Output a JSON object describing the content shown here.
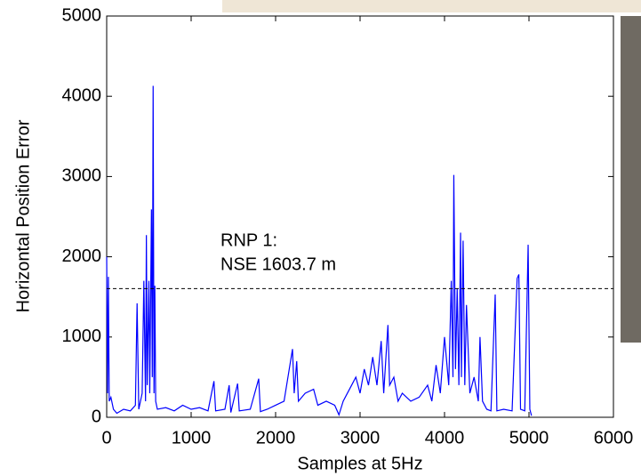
{
  "chart_data": {
    "type": "line",
    "y_label": "Horizontal Position Error",
    "x_label": "Samples at 5Hz",
    "annotations": [
      "RNP 1:",
      "NSE 1603.7 m"
    ],
    "reference_line": 1603.7,
    "xlim": [
      0,
      6000
    ],
    "xticks": [
      0,
      1000,
      2000,
      3000,
      4000,
      5000,
      6000
    ],
    "ylim": [
      0,
      5000
    ],
    "yticks": [
      0,
      1000,
      2000,
      3000,
      4000,
      5000
    ],
    "color": "#0000ff",
    "x": [
      0,
      10,
      20,
      30,
      50,
      80,
      120,
      200,
      280,
      340,
      360,
      380,
      420,
      440,
      460,
      470,
      480,
      500,
      510,
      530,
      540,
      550,
      560,
      570,
      580,
      600,
      700,
      800,
      900,
      1000,
      1100,
      1200,
      1270,
      1290,
      1400,
      1450,
      1470,
      1550,
      1570,
      1700,
      1800,
      1820,
      1900,
      2000,
      2100,
      2200,
      2220,
      2250,
      2270,
      2350,
      2450,
      2500,
      2600,
      2700,
      2750,
      2800,
      2850,
      2900,
      2950,
      3000,
      3050,
      3100,
      3150,
      3200,
      3250,
      3280,
      3330,
      3350,
      3400,
      3450,
      3500,
      3600,
      3700,
      3800,
      3850,
      3900,
      3950,
      4000,
      4050,
      4080,
      4100,
      4110,
      4130,
      4150,
      4170,
      4190,
      4200,
      4220,
      4240,
      4260,
      4300,
      4350,
      4400,
      4420,
      4450,
      4500,
      4550,
      4600,
      4620,
      4700,
      4800,
      4860,
      4880,
      4900,
      4950,
      4990,
      5010,
      5030
    ],
    "values": [
      2000,
      300,
      1750,
      200,
      250,
      100,
      50,
      100,
      80,
      150,
      1420,
      100,
      300,
      1700,
      200,
      2270,
      400,
      1700,
      300,
      2590,
      500,
      4130,
      300,
      1640,
      200,
      100,
      120,
      80,
      150,
      100,
      120,
      80,
      450,
      80,
      100,
      400,
      60,
      420,
      80,
      100,
      480,
      70,
      100,
      150,
      200,
      850,
      300,
      700,
      200,
      300,
      350,
      150,
      200,
      150,
      30,
      200,
      300,
      400,
      500,
      300,
      600,
      400,
      750,
      400,
      950,
      300,
      1150,
      400,
      500,
      200,
      300,
      200,
      250,
      400,
      200,
      650,
      300,
      1000,
      400,
      1700,
      500,
      3020,
      600,
      1600,
      400,
      2300,
      500,
      2200,
      400,
      1400,
      300,
      500,
      200,
      1000,
      200,
      100,
      80,
      1530,
      80,
      100,
      80,
      1730,
      1780,
      100,
      80,
      2150,
      100,
      20
    ]
  }
}
